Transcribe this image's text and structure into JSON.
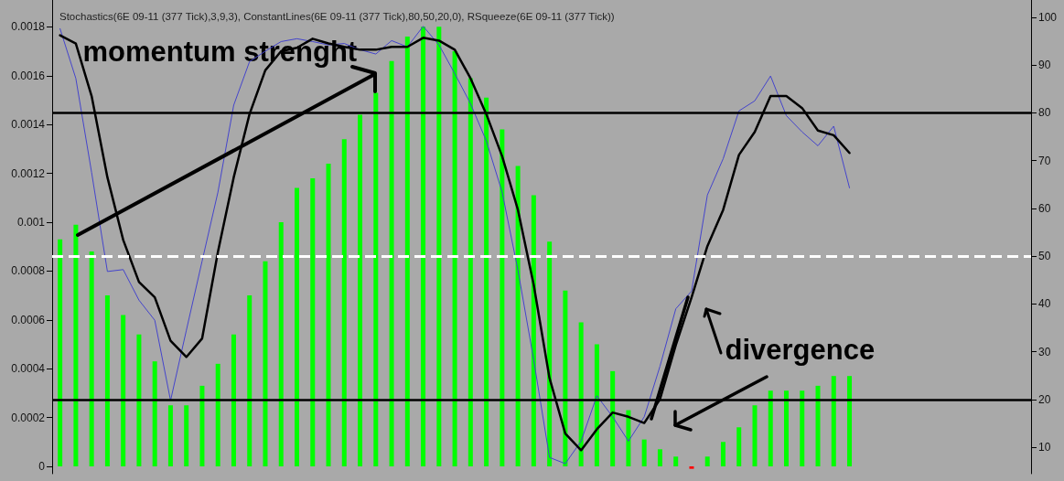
{
  "chart_data": {
    "type": "bar",
    "title": "Stochastics(6E 09-11 (377 Tick),3,9,3), ConstantLines(6E 09-11 (377 Tick),80,50,20,0), RSqueeze(6E 09-11 (377 Tick))",
    "categories": [
      null,
      null,
      null,
      null,
      null,
      null,
      null,
      null,
      null,
      null,
      null,
      null,
      null,
      null,
      null,
      null,
      null,
      null,
      null,
      null,
      null,
      null,
      null,
      null,
      null,
      null,
      null,
      null,
      null,
      null,
      null,
      null,
      null,
      null,
      null,
      null,
      null,
      null,
      null,
      null,
      null,
      null,
      null,
      null,
      null,
      null,
      null,
      null,
      null,
      null,
      null,
      null,
      null,
      null,
      null,
      null,
      null,
      null,
      null,
      null,
      null,
      null
    ],
    "series": [
      {
        "color": "#00ff00",
        "colors": [
          "#00ff00",
          "#00ff00",
          "#00ff00",
          "#00ff00",
          "#00ff00",
          "#00ff00",
          "#00ff00",
          "#00ff00",
          "#00ff00",
          "#00ff00",
          "#00ff00",
          "#00ff00",
          "#00ff00",
          "#00ff00",
          "#00ff00",
          "#00ff00",
          "#00ff00",
          "#00ff00",
          "#00ff00",
          "#00ff00",
          "#00ff00",
          "#00ff00",
          "#00ff00",
          "#00ff00",
          "#00ff00",
          "#00ff00",
          "#00ff00",
          "#00ff00",
          "#00ff00",
          "#00ff00",
          "#00ff00",
          "#00ff00",
          "#00ff00",
          "#00ff00",
          "#00ff00",
          "#00ff00",
          "#00ff00",
          "#00ff00",
          "#00ff00",
          "#00ff00",
          "#ff0000",
          "#00ff00",
          "#00ff00",
          "#00ff00",
          "#00ff00",
          "#00ff00",
          "#00ff00",
          "#00ff00",
          "#00ff00",
          "#00ff00",
          "#00ff00",
          null,
          null,
          null,
          null,
          null,
          null,
          null,
          null,
          null,
          null,
          null
        ],
        "values": [
          0.00093,
          0.00099,
          0.00088,
          0.0007,
          0.00062,
          0.00054,
          0.00043,
          0.00025,
          0.00025,
          0.00033,
          0.00042,
          0.00054,
          0.0007,
          0.00084,
          0.001,
          0.00114,
          0.00118,
          0.00124,
          0.00134,
          0.00144,
          0.00153,
          0.00166,
          0.00176,
          0.0018,
          0.0018,
          0.0017,
          0.00159,
          0.00151,
          0.00138,
          0.00123,
          0.00111,
          0.00092,
          0.00072,
          0.00059,
          0.0005,
          0.00039,
          0.00023,
          0.00011,
          7e-05,
          4e-05,
          -1e-05,
          4e-05,
          0.0001,
          0.00016,
          0.00025,
          0.00031,
          0.00031,
          0.00031,
          0.00033,
          0.00037,
          0.00037,
          null,
          null,
          null,
          null,
          null,
          null,
          null,
          null,
          null,
          null,
          null
        ]
      },
      {
        "type": "line",
        "axis": "y2",
        "color": "#4444cc",
        "values": [
          97.6,
          87.2,
          67.5,
          46.8,
          47.2,
          40.8,
          36.6,
          19.8,
          34.5,
          49,
          63.4,
          81.6,
          90.7,
          92.9,
          94.9,
          95.5,
          94.9,
          94.2,
          94.5,
          93.2,
          92.3,
          95.1,
          93.8,
          98.1,
          94.2,
          88.2,
          81.9,
          74.1,
          63.4,
          47.1,
          28.3,
          7.9,
          6.6,
          11.3,
          20.8,
          16.4,
          11.3,
          16.4,
          27,
          39,
          42.7,
          62.8,
          70.4,
          80.4,
          82.5,
          87.7,
          79.4,
          76,
          73.1,
          77.2,
          64.3,
          null,
          null,
          null,
          null,
          null,
          null,
          null,
          null,
          null,
          null,
          null
        ]
      },
      {
        "type": "line",
        "axis": "y2",
        "color": "#000000",
        "values": [
          96.2,
          94.5,
          83.5,
          66.5,
          53.4,
          44.6,
          41.4,
          32.3,
          28.9,
          32.8,
          50.9,
          66.5,
          79.7,
          88.9,
          92.9,
          93.6,
          95.5,
          94.5,
          93.8,
          93.2,
          93.2,
          93.8,
          93.8,
          95.7,
          95.1,
          93.2,
          87.2,
          79.7,
          70.9,
          59.7,
          44,
          24.5,
          12.9,
          9.4,
          13.8,
          17.3,
          16.4,
          15.1,
          20.1,
          31.4,
          41.4,
          52.1,
          59.7,
          71.2,
          76,
          83.5,
          83.5,
          81,
          76.3,
          75.3,
          71.6,
          null,
          null,
          null,
          null,
          null,
          null,
          null,
          null,
          null,
          null,
          null
        ]
      }
    ],
    "ylim": [
      -3e-05,
      0.00191
    ],
    "yticks": [
      0,
      0.0002,
      0.0004,
      0.0006,
      0.0008,
      0.001,
      0.0012,
      0.0014,
      0.0016,
      0.0018
    ],
    "y2lim": [
      4.5,
      103.6
    ],
    "y2ticks": [
      10,
      20,
      30,
      40,
      50,
      60,
      70,
      80,
      90,
      100
    ],
    "ref_lines": [
      {
        "axis": "y2",
        "value": 80,
        "color": "#000000",
        "line_style": "solid"
      },
      {
        "axis": "y2",
        "value": 50,
        "color": "#ffffff",
        "line_style": "dashed"
      },
      {
        "axis": "y2",
        "value": 20,
        "color": "#000000",
        "line_style": "solid"
      }
    ],
    "annotations": [
      "momentum strenght",
      "divergence"
    ],
    "grid": false,
    "marker": "none",
    "line_style": "solid"
  }
}
